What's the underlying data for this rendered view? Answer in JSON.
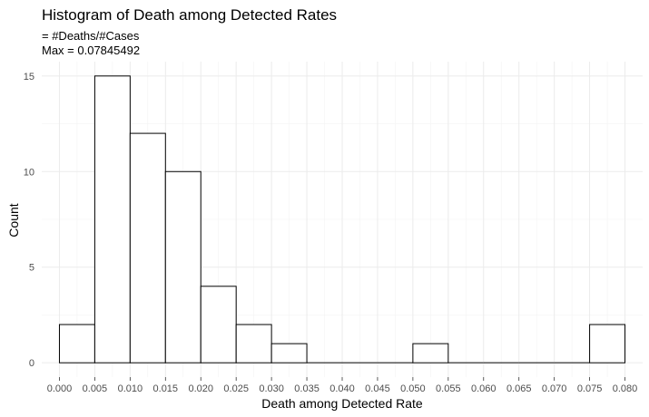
{
  "chart_data": {
    "type": "bar",
    "title": "Histogram of Death among Detected Rates",
    "subtitle": [
      "= #Deaths/#Cases",
      "Max = 0.07845492"
    ],
    "xlabel": "Death among Detected Rate",
    "ylabel": "Count",
    "bin_width": 0.005,
    "bins": [
      {
        "start": 0.0,
        "end": 0.005,
        "count": 2
      },
      {
        "start": 0.005,
        "end": 0.01,
        "count": 15
      },
      {
        "start": 0.01,
        "end": 0.015,
        "count": 12
      },
      {
        "start": 0.015,
        "end": 0.02,
        "count": 10
      },
      {
        "start": 0.02,
        "end": 0.025,
        "count": 4
      },
      {
        "start": 0.025,
        "end": 0.03,
        "count": 2
      },
      {
        "start": 0.03,
        "end": 0.035,
        "count": 1
      },
      {
        "start": 0.035,
        "end": 0.04,
        "count": 0
      },
      {
        "start": 0.04,
        "end": 0.045,
        "count": 0
      },
      {
        "start": 0.045,
        "end": 0.05,
        "count": 0
      },
      {
        "start": 0.05,
        "end": 0.055,
        "count": 1
      },
      {
        "start": 0.055,
        "end": 0.06,
        "count": 0
      },
      {
        "start": 0.06,
        "end": 0.065,
        "count": 0
      },
      {
        "start": 0.065,
        "end": 0.07,
        "count": 0
      },
      {
        "start": 0.07,
        "end": 0.075,
        "count": 0
      },
      {
        "start": 0.075,
        "end": 0.08,
        "count": 2
      }
    ],
    "x_ticks": [
      "0.000",
      "0.005",
      "0.010",
      "0.015",
      "0.020",
      "0.025",
      "0.030",
      "0.035",
      "0.040",
      "0.045",
      "0.050",
      "0.055",
      "0.060",
      "0.065",
      "0.070",
      "0.075",
      "0.080"
    ],
    "y_ticks": [
      "0",
      "5",
      "10",
      "15"
    ],
    "xlim": [
      -0.0025,
      0.0825
    ],
    "ylim": [
      -0.75,
      15.75
    ],
    "grid": true,
    "colors": {
      "bar_fill": "#ffffff",
      "bar_stroke": "#000000",
      "grid": "#ebebeb"
    }
  }
}
